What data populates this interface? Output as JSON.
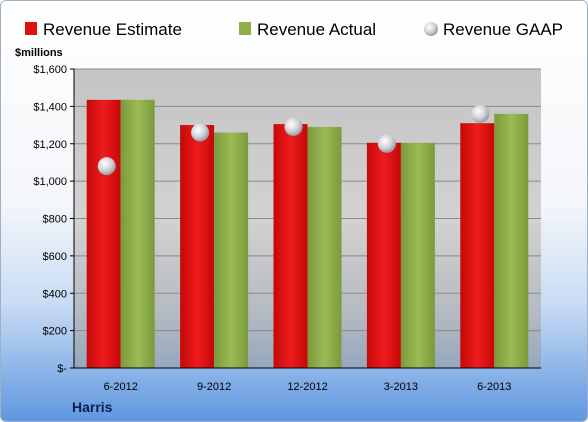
{
  "company": "Harris",
  "chart_data": {
    "type": "bar",
    "ylabel": "$millions",
    "ylim": [
      0,
      1600
    ],
    "yticks": [
      0,
      200,
      400,
      600,
      800,
      1000,
      1200,
      1400,
      1600
    ],
    "ytick_labels": [
      "$-",
      "$200",
      "$400",
      "$600",
      "$800",
      "$1,000",
      "$1,200",
      "$1,400",
      "$1,600"
    ],
    "categories": [
      "6-2012",
      "9-2012",
      "12-2012",
      "3-2013",
      "6-2013"
    ],
    "series": [
      {
        "name": "Revenue Estimate",
        "type": "bar",
        "color": "#e01010",
        "values": [
          1435,
          1300,
          1305,
          1205,
          1310
        ]
      },
      {
        "name": "Revenue Actual",
        "type": "bar",
        "color": "#8fb04a",
        "values": [
          1435,
          1260,
          1290,
          1205,
          1360
        ]
      },
      {
        "name": "Revenue GAAP",
        "type": "marker",
        "color": "#c8ccd4",
        "values": [
          1080,
          1260,
          1290,
          1200,
          1360
        ]
      }
    ],
    "legend_position": "top",
    "grid": true
  }
}
